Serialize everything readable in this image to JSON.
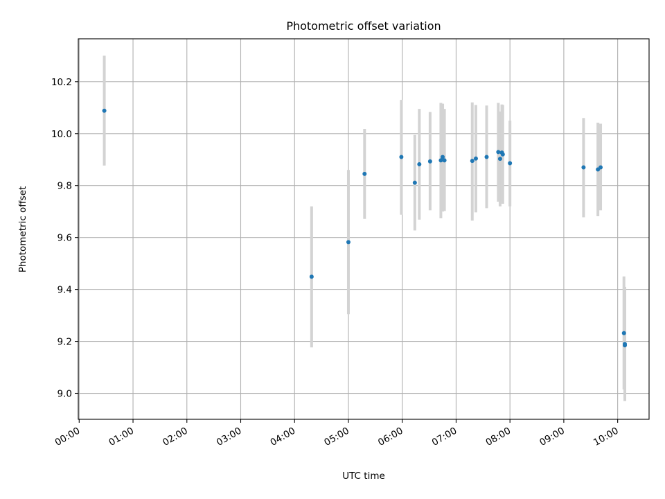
{
  "chart_data": {
    "type": "scatter",
    "title": "Photometric offset variation",
    "xlabel": "UTC time",
    "ylabel": "Photometric offset",
    "xlim": [
      "23:59",
      "10:35"
    ],
    "ylim": [
      8.9,
      10.365
    ],
    "grid": true,
    "x_ticks": [
      "00:00",
      "01:00",
      "02:00",
      "03:00",
      "04:00",
      "05:00",
      "06:00",
      "07:00",
      "08:00",
      "09:00",
      "10:00"
    ],
    "y_ticks": [
      9.0,
      9.2,
      9.4,
      9.6,
      9.8,
      10.0,
      10.2
    ],
    "colors": {
      "point": "#1f77b4",
      "error_bar": "#d3d3d3",
      "grid": "#b0b0b0"
    },
    "series": [
      {
        "points": [
          {
            "x": "00:28",
            "y": 10.088,
            "ylow": 9.877,
            "yhigh": 10.3
          },
          {
            "x": "04:19",
            "y": 9.449,
            "ylow": 9.177,
            "yhigh": 9.72
          },
          {
            "x": "05:00",
            "y": 9.582,
            "ylow": 9.305,
            "yhigh": 9.86
          },
          {
            "x": "05:18",
            "y": 9.845,
            "ylow": 9.672,
            "yhigh": 10.018
          },
          {
            "x": "05:59",
            "y": 9.91,
            "ylow": 9.688,
            "yhigh": 10.13
          },
          {
            "x": "06:14",
            "y": 9.811,
            "ylow": 9.627,
            "yhigh": 9.995
          },
          {
            "x": "06:19",
            "y": 9.882,
            "ylow": 9.669,
            "yhigh": 10.095
          },
          {
            "x": "06:31",
            "y": 9.893,
            "ylow": 9.705,
            "yhigh": 10.083
          },
          {
            "x": "06:43",
            "y": 9.897,
            "ylow": 9.674,
            "yhigh": 10.118
          },
          {
            "x": "06:45",
            "y": 9.91,
            "ylow": 9.7,
            "yhigh": 10.115
          },
          {
            "x": "06:47",
            "y": 9.897,
            "ylow": 9.702,
            "yhigh": 10.095
          },
          {
            "x": "07:18",
            "y": 9.895,
            "ylow": 9.665,
            "yhigh": 10.12
          },
          {
            "x": "07:22",
            "y": 9.904,
            "ylow": 9.697,
            "yhigh": 10.11
          },
          {
            "x": "07:34",
            "y": 9.91,
            "ylow": 9.713,
            "yhigh": 10.108
          },
          {
            "x": "07:47",
            "y": 9.929,
            "ylow": 9.738,
            "yhigh": 10.118
          },
          {
            "x": "07:49",
            "y": 9.903,
            "ylow": 9.72,
            "yhigh": 10.085
          },
          {
            "x": "07:51",
            "y": 9.927,
            "ylow": 9.74,
            "yhigh": 10.112
          },
          {
            "x": "07:52",
            "y": 9.92,
            "ylow": 9.73,
            "yhigh": 10.11
          },
          {
            "x": "08:00",
            "y": 9.886,
            "ylow": 9.72,
            "yhigh": 10.05
          },
          {
            "x": "09:22",
            "y": 9.87,
            "ylow": 9.678,
            "yhigh": 10.06
          },
          {
            "x": "09:38",
            "y": 9.862,
            "ylow": 9.682,
            "yhigh": 10.042
          },
          {
            "x": "09:41",
            "y": 9.87,
            "ylow": 9.705,
            "yhigh": 10.038
          },
          {
            "x": "10:07",
            "y": 9.232,
            "ylow": 9.015,
            "yhigh": 9.45
          },
          {
            "x": "10:08",
            "y": 9.19,
            "ylow": 8.97,
            "yhigh": 9.41
          },
          {
            "x": "10:08",
            "y": 9.185,
            "ylow": 8.985,
            "yhigh": 9.385
          }
        ]
      }
    ]
  }
}
